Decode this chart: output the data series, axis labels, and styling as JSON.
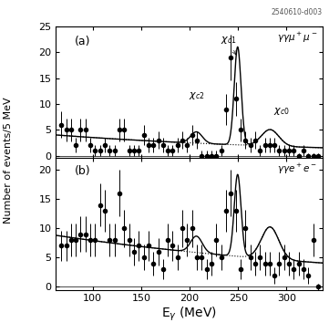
{
  "title_label": "2540610-d003",
  "xlabel": "E$_{\\gamma}$ (MeV)",
  "ylabel": "Number of events/5 MeV",
  "xlim": [
    62,
    337
  ],
  "ylim_a": [
    -0.5,
    25
  ],
  "ylim_b": [
    -0.5,
    22
  ],
  "yticks_a": [
    0,
    5,
    10,
    15,
    20,
    25
  ],
  "yticks_b": [
    0,
    5,
    10,
    15,
    20
  ],
  "xticks": [
    100,
    150,
    200,
    250,
    300
  ],
  "panel_a_label": "(a)",
  "panel_b_label": "(b)",
  "data_a_x": [
    67.5,
    72.5,
    77.5,
    82.5,
    87.5,
    92.5,
    97.5,
    102.5,
    107.5,
    112.5,
    117.5,
    122.5,
    127.5,
    132.5,
    137.5,
    142.5,
    147.5,
    152.5,
    157.5,
    162.5,
    167.5,
    172.5,
    177.5,
    182.5,
    187.5,
    192.5,
    197.5,
    202.5,
    207.5,
    212.5,
    217.5,
    222.5,
    227.5,
    232.5,
    237.5,
    242.5,
    247.5,
    252.5,
    257.5,
    262.5,
    267.5,
    272.5,
    277.5,
    282.5,
    287.5,
    292.5,
    297.5,
    302.5,
    307.5,
    312.5,
    317.5,
    322.5,
    327.5,
    332.5
  ],
  "data_a_y": [
    6,
    5,
    5,
    2,
    5,
    5,
    2,
    1,
    1,
    2,
    1,
    1,
    5,
    5,
    1,
    1,
    1,
    4,
    2,
    2,
    3,
    2,
    1,
    1,
    2,
    3,
    2,
    4,
    3,
    0,
    0,
    0,
    0,
    1,
    9,
    19,
    11,
    5,
    3,
    2,
    3,
    1,
    2,
    2,
    2,
    1,
    1,
    1,
    1,
    0,
    1,
    0,
    0,
    0
  ],
  "data_a_yerr": [
    2.5,
    2.2,
    2.2,
    1.4,
    2.2,
    2.2,
    1.4,
    1.0,
    1.0,
    1.4,
    1.0,
    1.0,
    2.2,
    2.2,
    1.0,
    1.0,
    1.0,
    2.0,
    1.4,
    1.4,
    1.7,
    1.4,
    1.0,
    1.0,
    1.4,
    1.7,
    1.4,
    2.0,
    1.7,
    1.0,
    1.0,
    1.0,
    1.0,
    1.0,
    3.0,
    4.4,
    3.3,
    2.2,
    1.7,
    1.4,
    1.7,
    1.0,
    1.4,
    1.4,
    1.4,
    1.0,
    1.0,
    1.0,
    1.0,
    0.5,
    1.0,
    0.5,
    0.5,
    0.5
  ],
  "data_b_x": [
    67.5,
    72.5,
    77.5,
    82.5,
    87.5,
    92.5,
    97.5,
    102.5,
    107.5,
    112.5,
    117.5,
    122.5,
    127.5,
    132.5,
    137.5,
    142.5,
    147.5,
    152.5,
    157.5,
    162.5,
    167.5,
    172.5,
    177.5,
    182.5,
    187.5,
    192.5,
    197.5,
    202.5,
    207.5,
    212.5,
    217.5,
    222.5,
    227.5,
    232.5,
    237.5,
    242.5,
    247.5,
    252.5,
    257.5,
    262.5,
    267.5,
    272.5,
    277.5,
    282.5,
    287.5,
    292.5,
    297.5,
    302.5,
    307.5,
    312.5,
    317.5,
    322.5,
    327.5,
    332.5
  ],
  "data_b_y": [
    7,
    7,
    8,
    8,
    9,
    9,
    8,
    8,
    14,
    13,
    8,
    8,
    16,
    10,
    8,
    6,
    7,
    5,
    7,
    4,
    6,
    3,
    8,
    7,
    5,
    10,
    8,
    10,
    5,
    5,
    3,
    4,
    8,
    5,
    13,
    16,
    13,
    3,
    10,
    5,
    4,
    5,
    4,
    4,
    2,
    4,
    5,
    4,
    3,
    4,
    3,
    2,
    8,
    0
  ],
  "data_b_yerr": [
    2.6,
    2.6,
    2.8,
    2.8,
    3.0,
    3.0,
    2.8,
    2.8,
    3.7,
    3.6,
    2.8,
    2.8,
    4.0,
    3.2,
    2.8,
    2.4,
    2.6,
    2.2,
    2.6,
    2.0,
    2.4,
    1.7,
    2.8,
    2.6,
    2.2,
    3.2,
    2.8,
    3.2,
    2.2,
    2.2,
    1.7,
    2.0,
    2.8,
    2.2,
    3.6,
    4.0,
    3.6,
    1.7,
    3.2,
    2.2,
    2.0,
    2.2,
    2.0,
    2.0,
    1.4,
    2.0,
    2.2,
    2.0,
    1.7,
    2.0,
    1.7,
    1.4,
    2.8,
    0.5
  ],
  "bg_a_amp": 4.0,
  "bg_a_decay": 0.0035,
  "bg_b_amp": 8.8,
  "bg_b_decay": 0.0028,
  "chi_c1_mu": 249.5,
  "chi_c1_sig": 3.5,
  "chi_c1_amp_a": 19.0,
  "chi_c1_amp_b": 14.0,
  "chi_c2_mu": 207.0,
  "chi_c2_sig": 6.0,
  "chi_c2_amp_a": 2.2,
  "chi_c2_amp_b": 2.8,
  "chi_c0_mu": 283.0,
  "chi_c0_sig": 9.0,
  "chi_c0_amp_a": 3.2,
  "chi_c0_amp_b": 5.5
}
